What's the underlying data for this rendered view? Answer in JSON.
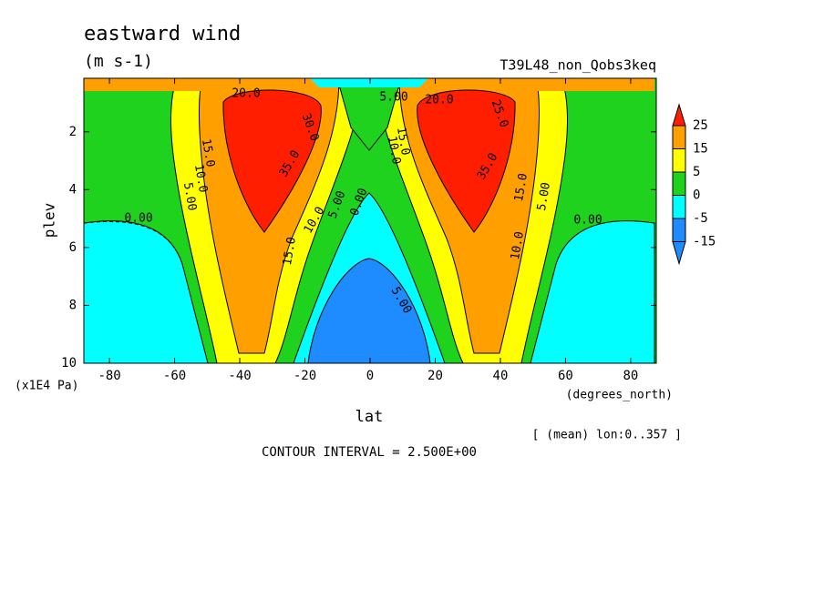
{
  "chart_data": {
    "type": "contour",
    "title": "eastward wind",
    "subtitle": "(m s-1)",
    "run_label": "T39L48_non_Qobs3keq",
    "xlabel": "lat",
    "ylabel": "plev",
    "xunit": "(degrees_north)",
    "yunit": "(x1E4 Pa)",
    "note": "[ (mean) lon:0..357 ]",
    "footer": "CONTOUR INTERVAL = 2.500E+00",
    "xlim": [
      -87.86,
      87.86
    ],
    "ylim": [
      10,
      0.15
    ],
    "xticks": [
      -80,
      -60,
      -40,
      -20,
      0,
      20,
      40,
      60,
      80
    ],
    "yticks": [
      2,
      4,
      6,
      8,
      10
    ],
    "levels": [
      -15,
      -5,
      0,
      5,
      15,
      25
    ],
    "colors": [
      "#1e8cff",
      "#1e8cff",
      "#00ffff",
      "#1ed21e",
      "#ffff00",
      "#ffa000",
      "#ff1e00"
    ],
    "contour_labels": [
      {
        "value": 20,
        "label": "20.0"
      },
      {
        "value": 5,
        "label": "5.00"
      },
      {
        "value": 20,
        "label": "20.0"
      },
      {
        "value": 30,
        "label": "30.0"
      },
      {
        "value": 25,
        "label": "25.0"
      },
      {
        "value": 15,
        "label": "15.0"
      },
      {
        "value": 10,
        "label": "10.0"
      },
      {
        "value": 15,
        "label": "15.0"
      },
      {
        "value": 35,
        "label": "35.0"
      },
      {
        "value": 35,
        "label": "35.0"
      },
      {
        "value": 10,
        "label": "10.0"
      },
      {
        "value": 15,
        "label": "15.0"
      },
      {
        "value": 5,
        "label": "5.00"
      },
      {
        "value": 5,
        "label": "5.00"
      },
      {
        "value": 5,
        "label": "5.00"
      },
      {
        "value": 0,
        "label": "0.00"
      },
      {
        "value": 10,
        "label": "10.0"
      },
      {
        "value": 0,
        "label": "0.00"
      },
      {
        "value": 0,
        "label": "0.00"
      },
      {
        "value": 15,
        "label": "15.0"
      },
      {
        "value": 10,
        "label": "10.0"
      },
      {
        "value": 5,
        "label": "5.00"
      }
    ]
  }
}
